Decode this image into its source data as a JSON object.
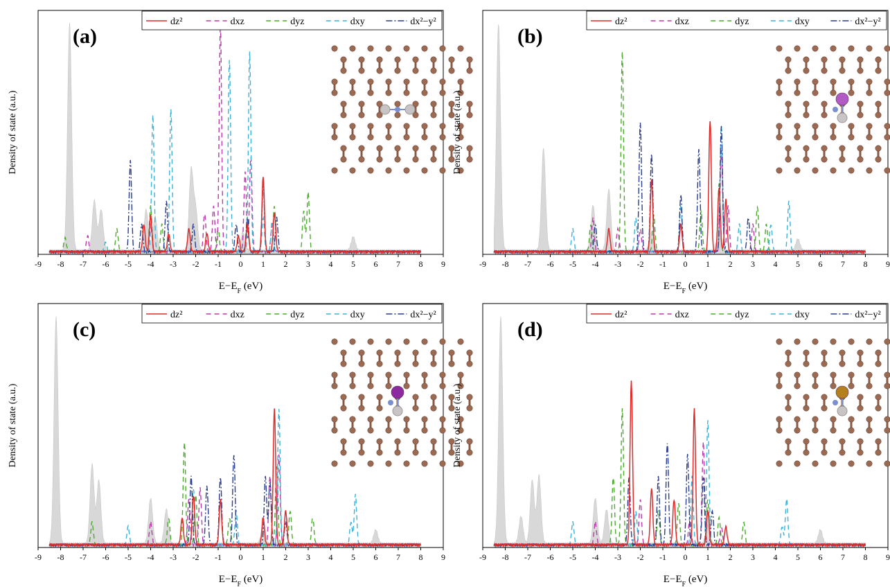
{
  "figure": {
    "panels": [
      {
        "tag": "(a)",
        "inset": "none"
      },
      {
        "tag": "(b)",
        "inset": "#b25bc4"
      },
      {
        "tag": "(c)",
        "inset": "#8d2aa0"
      },
      {
        "tag": "(d)",
        "inset": "#b4801e"
      }
    ]
  },
  "chart_data": [
    {
      "type": "line",
      "ylabel": "Density of state (a.u.)",
      "xlabel": "E−E_F (eV)",
      "xlim": [
        -9,
        9
      ],
      "xticks": [
        "-9",
        "-8",
        "-7",
        "-6",
        "-5",
        "-4",
        "-3",
        "-2",
        "-1",
        "0",
        "1",
        "2",
        "3",
        "4",
        "5",
        "6",
        "7",
        "8",
        "9"
      ],
      "grid": false,
      "legend_position": "top-right",
      "legend": [
        "dz²",
        "dxz",
        "dyz",
        "dxy",
        "dx²−y²"
      ],
      "colors": {
        "dz2": "#e02a2a",
        "dxz": "#b93aa8",
        "dyz": "#4caa2e",
        "dxy": "#3ab3d8",
        "dx2y2": "#283c8c",
        "total": "#d8d8d8"
      },
      "peaks": {
        "total": [
          [
            -7.6,
            1.0
          ],
          [
            -6.5,
            0.22
          ],
          [
            -6.2,
            0.18
          ],
          [
            -4.2,
            0.18
          ],
          [
            -3.8,
            0.15
          ],
          [
            -2.2,
            0.35
          ],
          [
            -2.0,
            0.18
          ],
          [
            0.1,
            0.08
          ],
          [
            5.0,
            0.06
          ]
        ],
        "dz2": [
          [
            -4.3,
            0.12
          ],
          [
            -4.0,
            0.16
          ],
          [
            -3.2,
            0.08
          ],
          [
            -2.3,
            0.1
          ],
          [
            -1.5,
            0.08
          ],
          [
            -0.1,
            0.07
          ],
          [
            0.3,
            0.12
          ],
          [
            1.0,
            0.33
          ],
          [
            1.5,
            0.17
          ]
        ],
        "dxz": [
          [
            -6.8,
            0.07
          ],
          [
            -4.0,
            0.12
          ],
          [
            -1.6,
            0.17
          ],
          [
            -1.2,
            0.2
          ],
          [
            -0.9,
            1.0
          ],
          [
            0.2,
            0.35
          ],
          [
            0.45,
            0.42
          ],
          [
            1.4,
            0.13
          ]
        ],
        "dyz": [
          [
            -7.8,
            0.06
          ],
          [
            -5.5,
            0.1
          ],
          [
            -4.0,
            0.2
          ],
          [
            -3.5,
            0.12
          ],
          [
            -1.0,
            0.1
          ],
          [
            0.3,
            0.15
          ],
          [
            1.5,
            0.2
          ],
          [
            2.8,
            0.18
          ],
          [
            3.0,
            0.26
          ]
        ],
        "dxy": [
          [
            -6.0,
            0.04
          ],
          [
            -3.9,
            0.6
          ],
          [
            -3.1,
            0.63
          ],
          [
            -0.5,
            0.85
          ],
          [
            0.4,
            0.88
          ],
          [
            1.0,
            0.15
          ],
          [
            1.4,
            0.12
          ]
        ],
        "dx2y2": [
          [
            -4.9,
            0.4
          ],
          [
            -4.4,
            0.12
          ],
          [
            -3.3,
            0.22
          ],
          [
            -2.1,
            0.12
          ],
          [
            -0.2,
            0.12
          ],
          [
            0.3,
            0.15
          ],
          [
            1.0,
            0.3
          ],
          [
            1.6,
            0.15
          ]
        ]
      }
    },
    {
      "type": "line",
      "ylabel": "Density of state (a.u.)",
      "xlabel": "E−E_F (eV)",
      "xlim": [
        -9,
        9
      ],
      "xticks": [
        "-9",
        "-8",
        "-7",
        "-6",
        "-5",
        "-4",
        "-3",
        "-2",
        "-1",
        "0",
        "1",
        "2",
        "3",
        "4",
        "5",
        "6",
        "7",
        "8",
        "9"
      ],
      "grid": false,
      "legend_position": "top-right",
      "legend": [
        "dz²",
        "dxz",
        "dyz",
        "dxy",
        "dx²−y²"
      ],
      "colors": {
        "dz2": "#e02a2a",
        "dxz": "#b93aa8",
        "dyz": "#4caa2e",
        "dxy": "#3ab3d8",
        "dx2y2": "#283c8c",
        "total": "#d8d8d8"
      },
      "peaks": {
        "total": [
          [
            -8.3,
            1.0
          ],
          [
            -6.3,
            0.45
          ],
          [
            -4.1,
            0.2
          ],
          [
            -3.4,
            0.27
          ],
          [
            -1.5,
            0.08
          ],
          [
            1.5,
            0.1
          ],
          [
            5.0,
            0.05
          ]
        ],
        "dz2": [
          [
            -3.4,
            0.1
          ],
          [
            -1.5,
            0.32
          ],
          [
            -0.2,
            0.12
          ],
          [
            1.1,
            0.58
          ],
          [
            1.5,
            0.28
          ],
          [
            1.8,
            0.23
          ]
        ],
        "dxz": [
          [
            -4.1,
            0.15
          ],
          [
            -3.0,
            0.1
          ],
          [
            -2.0,
            0.1
          ],
          [
            1.6,
            0.45
          ],
          [
            1.9,
            0.2
          ],
          [
            3.0,
            0.12
          ]
        ],
        "dyz": [
          [
            -4.2,
            0.12
          ],
          [
            -2.8,
            0.88
          ],
          [
            -1.4,
            0.16
          ],
          [
            0.7,
            0.18
          ],
          [
            1.5,
            0.3
          ],
          [
            3.2,
            0.2
          ],
          [
            3.6,
            0.12
          ]
        ],
        "dxy": [
          [
            -5.0,
            0.1
          ],
          [
            -2.2,
            0.15
          ],
          [
            -0.2,
            0.2
          ],
          [
            1.6,
            0.56
          ],
          [
            2.4,
            0.12
          ],
          [
            3.8,
            0.12
          ],
          [
            4.6,
            0.22
          ]
        ],
        "dx2y2": [
          [
            -4.0,
            0.12
          ],
          [
            -2.0,
            0.57
          ],
          [
            -1.5,
            0.43
          ],
          [
            -0.2,
            0.25
          ],
          [
            0.6,
            0.45
          ],
          [
            1.6,
            0.55
          ],
          [
            2.8,
            0.15
          ]
        ]
      }
    },
    {
      "type": "line",
      "ylabel": "Density of state (a.u.)",
      "xlabel": "E−E_F (eV)",
      "xlim": [
        -9,
        9
      ],
      "xticks": [
        "-9",
        "-8",
        "-7",
        "-6",
        "-5",
        "-4",
        "-3",
        "-2",
        "-1",
        "0",
        "1",
        "2",
        "3",
        "4",
        "5",
        "6",
        "7",
        "8",
        "9"
      ],
      "grid": false,
      "legend_position": "top-right",
      "legend": [
        "dz²",
        "dxz",
        "dyz",
        "dxy",
        "dx²−y²"
      ],
      "colors": {
        "dz2": "#e02a2a",
        "dxz": "#b93aa8",
        "dyz": "#4caa2e",
        "dxy": "#3ab3d8",
        "dx2y2": "#283c8c",
        "total": "#d8d8d8"
      },
      "peaks": {
        "total": [
          [
            -8.2,
            1.0
          ],
          [
            -6.6,
            0.35
          ],
          [
            -6.3,
            0.28
          ],
          [
            -4.0,
            0.2
          ],
          [
            -3.3,
            0.15
          ],
          [
            1.0,
            0.08
          ],
          [
            6.0,
            0.06
          ]
        ],
        "dz2": [
          [
            -2.6,
            0.12
          ],
          [
            -2.1,
            0.22
          ],
          [
            -0.9,
            0.2
          ],
          [
            1.0,
            0.12
          ],
          [
            1.5,
            0.6
          ],
          [
            2.0,
            0.15
          ]
        ],
        "dxz": [
          [
            -4.0,
            0.1
          ],
          [
            -2.3,
            0.2
          ],
          [
            -1.8,
            0.25
          ],
          [
            1.3,
            0.3
          ],
          [
            1.7,
            0.4
          ]
        ],
        "dyz": [
          [
            -6.6,
            0.1
          ],
          [
            -3.2,
            0.12
          ],
          [
            -2.5,
            0.45
          ],
          [
            -2.0,
            0.22
          ],
          [
            -0.5,
            0.12
          ],
          [
            1.6,
            0.35
          ],
          [
            2.2,
            0.15
          ],
          [
            3.2,
            0.12
          ]
        ],
        "dxy": [
          [
            -5.0,
            0.08
          ],
          [
            -2.1,
            0.25
          ],
          [
            -0.2,
            0.15
          ],
          [
            1.7,
            0.6
          ],
          [
            4.9,
            0.1
          ],
          [
            5.1,
            0.22
          ]
        ],
        "dx2y2": [
          [
            -2.2,
            0.3
          ],
          [
            -1.5,
            0.26
          ],
          [
            -0.9,
            0.3
          ],
          [
            -0.3,
            0.4
          ],
          [
            1.1,
            0.3
          ],
          [
            1.3,
            0.28
          ],
          [
            2.0,
            0.1
          ]
        ]
      }
    },
    {
      "type": "line",
      "ylabel": "Density of state (a.u.)",
      "xlabel": "E−E_F (eV)",
      "xlim": [
        -9,
        9
      ],
      "xticks": [
        "-9",
        "-8",
        "-7",
        "-6",
        "-5",
        "-4",
        "-3",
        "-2",
        "-1",
        "0",
        "1",
        "2",
        "3",
        "4",
        "5",
        "6",
        "7",
        "8",
        "9"
      ],
      "grid": false,
      "legend_position": "top-right",
      "legend": [
        "dz²",
        "dxz",
        "dyz",
        "dxy",
        "dx²−y²"
      ],
      "colors": {
        "dz2": "#e02a2a",
        "dxz": "#b93aa8",
        "dyz": "#4caa2e",
        "dxy": "#3ab3d8",
        "dx2y2": "#283c8c",
        "total": "#d8d8d8"
      },
      "peaks": {
        "total": [
          [
            -8.2,
            1.0
          ],
          [
            -7.3,
            0.12
          ],
          [
            -6.8,
            0.28
          ],
          [
            -6.5,
            0.3
          ],
          [
            -4.0,
            0.2
          ],
          [
            -3.5,
            0.15
          ],
          [
            1.0,
            0.08
          ],
          [
            6.0,
            0.06
          ]
        ],
        "dz2": [
          [
            -2.4,
            0.72
          ],
          [
            -1.5,
            0.25
          ],
          [
            -0.5,
            0.2
          ],
          [
            0.4,
            0.6
          ],
          [
            1.0,
            0.15
          ],
          [
            1.8,
            0.08
          ]
        ],
        "dxz": [
          [
            -4.0,
            0.1
          ],
          [
            -2.0,
            0.2
          ],
          [
            0.2,
            0.12
          ],
          [
            0.8,
            0.45
          ],
          [
            1.6,
            0.08
          ]
        ],
        "dyz": [
          [
            -3.2,
            0.3
          ],
          [
            -2.8,
            0.6
          ],
          [
            -1.2,
            0.15
          ],
          [
            -0.3,
            0.18
          ],
          [
            1.0,
            0.2
          ],
          [
            1.5,
            0.12
          ],
          [
            2.6,
            0.1
          ]
        ],
        "dxy": [
          [
            -5.0,
            0.1
          ],
          [
            -2.2,
            0.15
          ],
          [
            0.3,
            0.3
          ],
          [
            1.0,
            0.55
          ],
          [
            4.3,
            0.08
          ],
          [
            4.5,
            0.2
          ]
        ],
        "dx2y2": [
          [
            -2.5,
            0.3
          ],
          [
            -1.2,
            0.3
          ],
          [
            -0.8,
            0.45
          ],
          [
            0.1,
            0.4
          ],
          [
            0.8,
            0.3
          ],
          [
            1.2,
            0.15
          ]
        ]
      }
    }
  ]
}
